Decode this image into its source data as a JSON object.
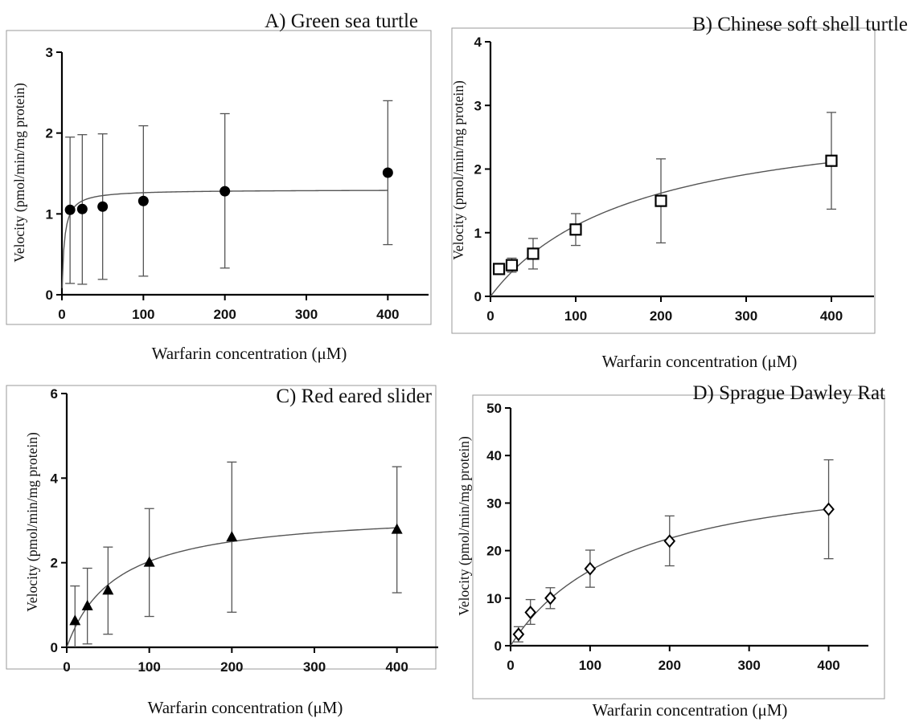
{
  "chart_data": [
    {
      "panel": "A",
      "type": "scatter",
      "title": "A) Green sea turtle",
      "xlabel": "Warfarin concentration (μM)",
      "ylabel": "Velocity (pmol/min/mg protein)",
      "xlim": [
        0,
        450
      ],
      "ylim": [
        0,
        3
      ],
      "xticks": [
        0,
        100,
        200,
        300,
        400
      ],
      "yticks": [
        0,
        1,
        2,
        3
      ],
      "marker": "filled-circle",
      "fit": {
        "model": "michaelis-menten",
        "vmax": 1.3,
        "km": 3
      },
      "points": [
        {
          "x": 10,
          "y": 1.05,
          "low": 0.14,
          "high": 1.95
        },
        {
          "x": 25,
          "y": 1.06,
          "low": 0.13,
          "high": 1.98
        },
        {
          "x": 50,
          "y": 1.09,
          "low": 0.19,
          "high": 1.99
        },
        {
          "x": 100,
          "y": 1.16,
          "low": 0.23,
          "high": 2.09
        },
        {
          "x": 200,
          "y": 1.28,
          "low": 0.33,
          "high": 2.24
        },
        {
          "x": 400,
          "y": 1.51,
          "low": 0.62,
          "high": 2.4
        }
      ]
    },
    {
      "panel": "B",
      "type": "scatter",
      "title": "B) Chinese soft shell turtle",
      "xlabel": "Warfarin concentration (μM)",
      "ylabel": "Velocity (pmol/min/mg protein)",
      "xlim": [
        0,
        450
      ],
      "ylim": [
        0,
        4
      ],
      "xticks": [
        0,
        100,
        200,
        300,
        400
      ],
      "yticks": [
        0,
        1,
        2,
        3,
        4
      ],
      "marker": "open-square",
      "fit": {
        "model": "michaelis-menten",
        "vmax": 3.0,
        "km": 170
      },
      "points": [
        {
          "x": 10,
          "y": 0.43,
          "low": 0.4,
          "high": 0.46
        },
        {
          "x": 25,
          "y": 0.49,
          "low": 0.38,
          "high": 0.6
        },
        {
          "x": 50,
          "y": 0.67,
          "low": 0.43,
          "high": 0.91
        },
        {
          "x": 100,
          "y": 1.05,
          "low": 0.8,
          "high": 1.3
        },
        {
          "x": 200,
          "y": 1.5,
          "low": 0.84,
          "high": 2.16
        },
        {
          "x": 400,
          "y": 2.13,
          "low": 1.37,
          "high": 2.89
        }
      ]
    },
    {
      "panel": "C",
      "type": "scatter",
      "title": "C) Red eared slider",
      "xlabel": "Warfarin concentration (μM)",
      "ylabel": "Velocity (pmol/min/mg protein)",
      "xlim": [
        0,
        450
      ],
      "ylim": [
        0,
        6
      ],
      "xticks": [
        0,
        100,
        200,
        300,
        400
      ],
      "yticks": [
        0,
        2,
        4,
        6
      ],
      "marker": "filled-triangle",
      "fit": {
        "model": "michaelis-menten",
        "vmax": 3.25,
        "km": 60
      },
      "points": [
        {
          "x": 10,
          "y": 0.62,
          "low": 0.0,
          "high": 1.45
        },
        {
          "x": 25,
          "y": 0.97,
          "low": 0.08,
          "high": 1.87
        },
        {
          "x": 50,
          "y": 1.34,
          "low": 0.31,
          "high": 2.37
        },
        {
          "x": 100,
          "y": 2.0,
          "low": 0.73,
          "high": 3.28
        },
        {
          "x": 200,
          "y": 2.6,
          "low": 0.83,
          "high": 4.38
        },
        {
          "x": 400,
          "y": 2.78,
          "low": 1.29,
          "high": 4.27
        }
      ]
    },
    {
      "panel": "D",
      "type": "scatter",
      "title": "D) Sprague Dawley Rat",
      "xlabel": "Warfarin concentration (μM)",
      "ylabel": "Velocity (pmol/min/mg protein)",
      "xlim": [
        0,
        450
      ],
      "ylim": [
        0,
        50
      ],
      "xticks": [
        0,
        100,
        200,
        300,
        400
      ],
      "yticks": [
        0,
        10,
        20,
        30,
        40,
        50
      ],
      "marker": "open-diamond",
      "fit": {
        "model": "michaelis-menten",
        "vmax": 39.5,
        "km": 150
      },
      "points": [
        {
          "x": 10,
          "y": 2.4,
          "low": 0.8,
          "high": 4.0
        },
        {
          "x": 25,
          "y": 7.0,
          "low": 4.5,
          "high": 9.7
        },
        {
          "x": 50,
          "y": 10.0,
          "low": 7.8,
          "high": 12.2
        },
        {
          "x": 100,
          "y": 16.2,
          "low": 12.3,
          "high": 20.1
        },
        {
          "x": 200,
          "y": 22.0,
          "low": 16.8,
          "high": 27.3
        },
        {
          "x": 400,
          "y": 28.7,
          "low": 18.3,
          "high": 39.1
        }
      ]
    }
  ]
}
